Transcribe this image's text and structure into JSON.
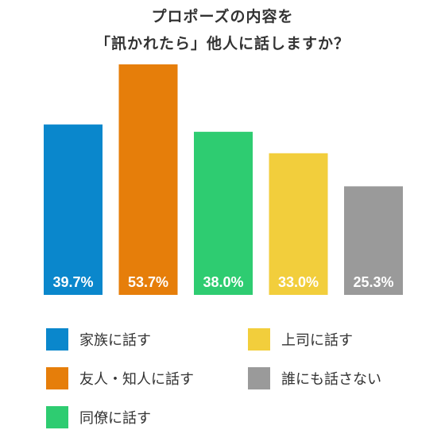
{
  "chart_data": {
    "type": "bar",
    "title_lines": [
      "プロポーズの内容を",
      "「訊かれたら」他人に話しますか？"
    ],
    "categories": [
      "家族に話す",
      "友人・知人に話す",
      "同僚に話す",
      "上司に話す",
      "誰にも話さない"
    ],
    "values": [
      39.7,
      53.7,
      38.0,
      33.0,
      25.3
    ],
    "value_labels": [
      "39.7%",
      "53.7%",
      "38.0%",
      "33.0%",
      "25.3%"
    ],
    "colors": [
      "#0A87CC",
      "#E67E0A",
      "#2ECC71",
      "#F2CE3C",
      "#9A9A9A"
    ],
    "ylim": [
      0,
      60
    ],
    "grid": false,
    "legend_position": "bottom"
  },
  "legend": [
    {
      "label": "家族に話す",
      "color": "#0A87CC"
    },
    {
      "label": "上司に話す",
      "color": "#F2CE3C"
    },
    {
      "label": "友人・知人に話す",
      "color": "#E67E0A"
    },
    {
      "label": "誰にも話さない",
      "color": "#9A9A9A"
    },
    {
      "label": "同僚に話す",
      "color": "#2ECC71"
    }
  ]
}
